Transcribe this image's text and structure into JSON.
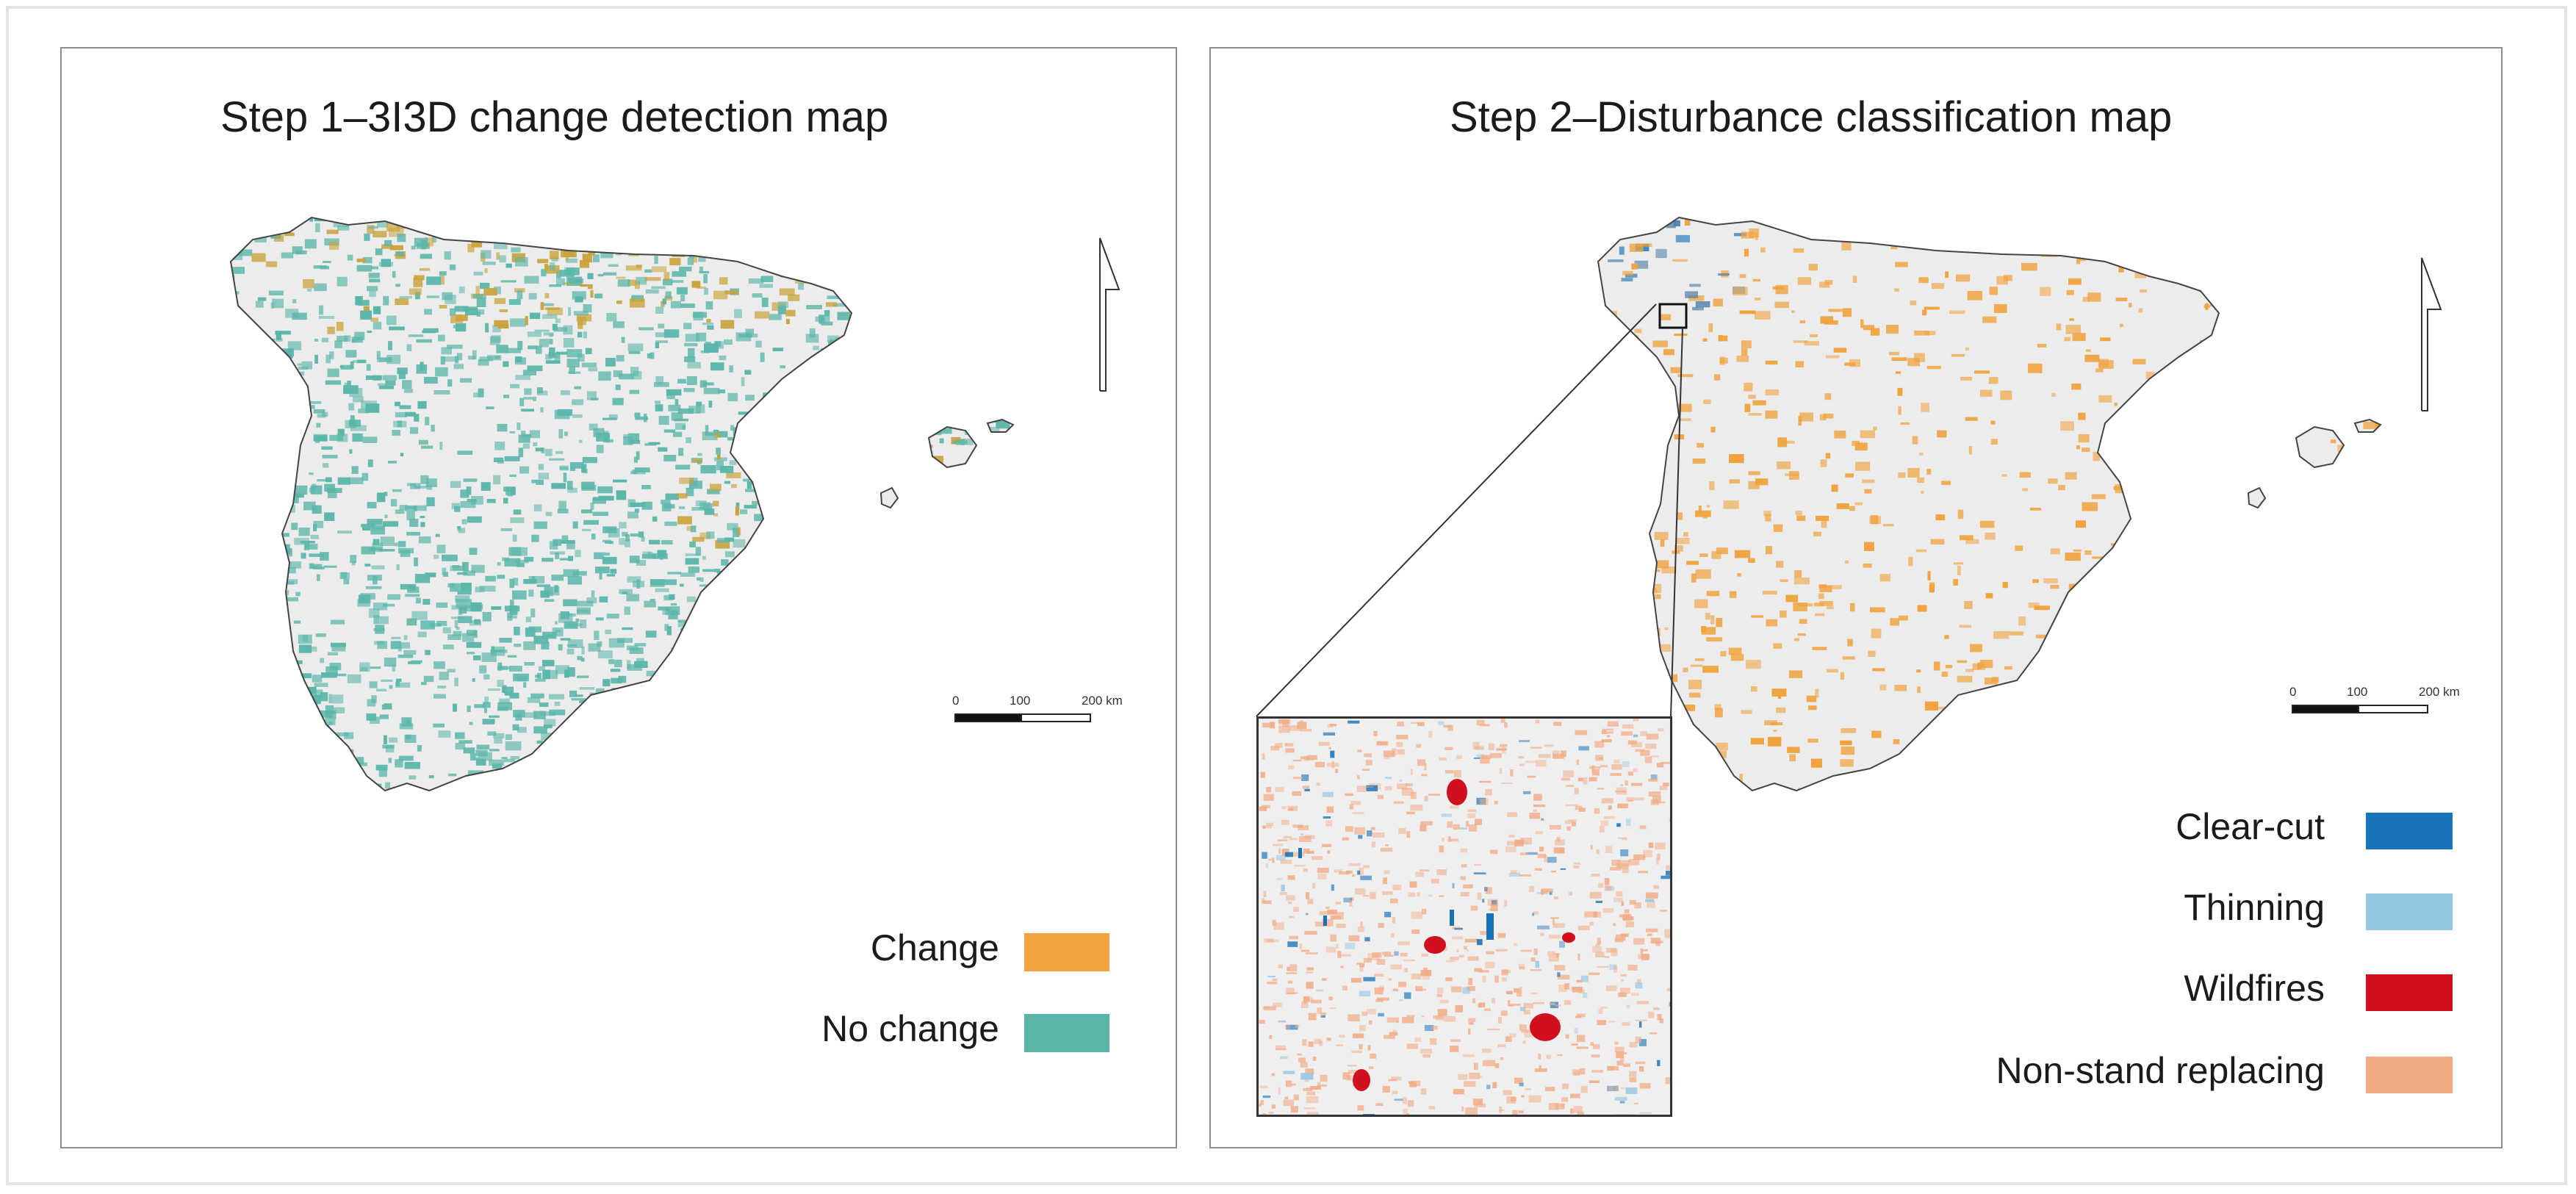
{
  "panels": [
    {
      "title": "Step 1–3I3D change detection map",
      "legend": [
        {
          "label": "Change",
          "color": "#f0a33e"
        },
        {
          "label": "No change",
          "color": "#5bb6aa"
        }
      ],
      "scale": {
        "ticks": [
          "0",
          "100",
          "200 km"
        ]
      },
      "north_arrow": "north-arrow-icon"
    },
    {
      "title": "Step 2–Disturbance classification map",
      "legend": [
        {
          "label": "Clear-cut",
          "color": "#1a72b8"
        },
        {
          "label": "Thinning",
          "color": "#95c6e2"
        },
        {
          "label": "Wildfires",
          "color": "#d0101c"
        },
        {
          "label": "Non-stand replacing",
          "color": "#f2ab85"
        }
      ],
      "scale": {
        "ticks": [
          "0",
          "100",
          "200 km"
        ]
      },
      "north_arrow": "north-arrow-icon",
      "inset": "zoom-inset"
    }
  ],
  "colors": {
    "land": "#ececec",
    "coast": "#444444",
    "change": "#f0a33e",
    "change_dark": "#c9a23a",
    "no_change": "#5bb6aa",
    "clear_cut": "#1a72b8",
    "thinning": "#95c6e2",
    "wildfire": "#d0101c",
    "non_stand": "#f2ab85"
  }
}
